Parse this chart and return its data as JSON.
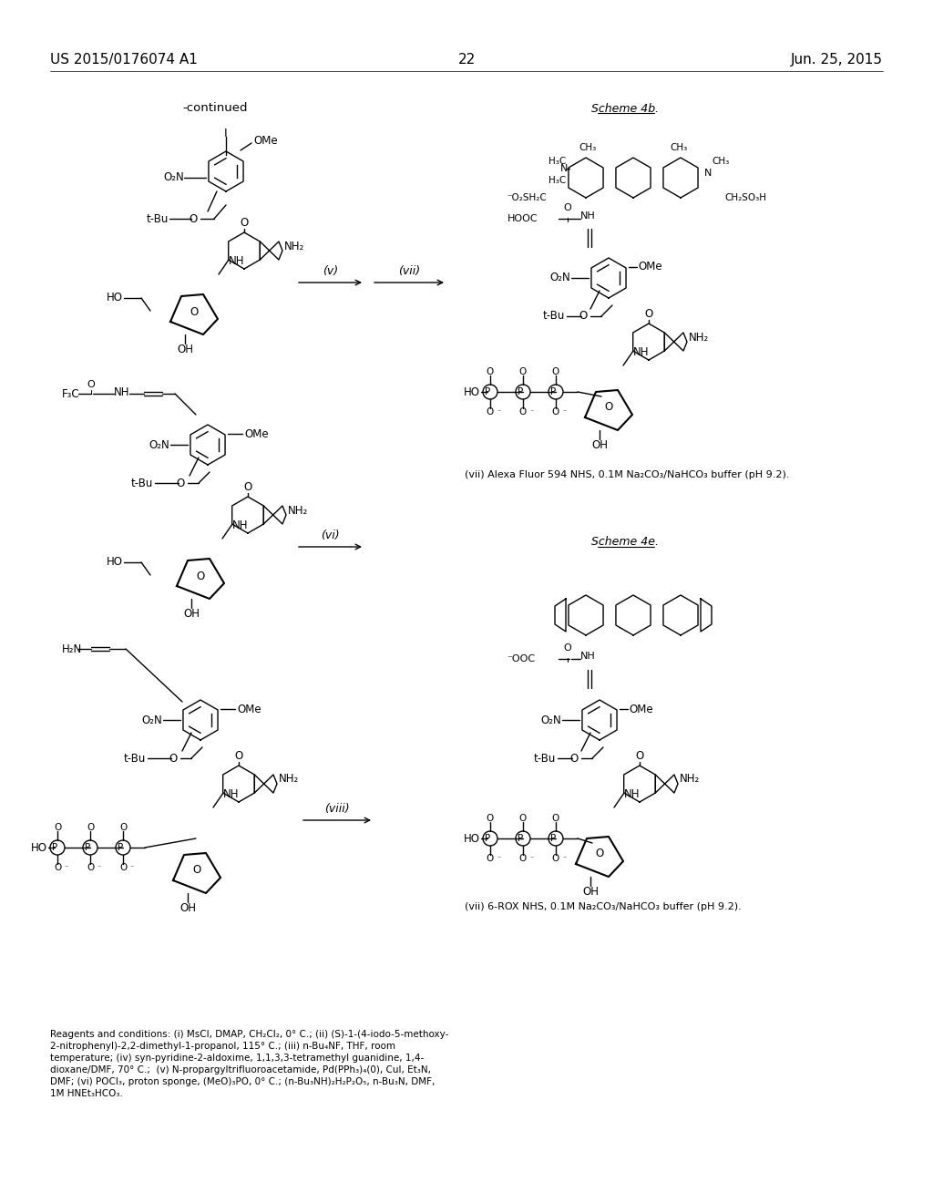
{
  "background_color": "#ffffff",
  "header_left": "US 2015/0176074 A1",
  "header_right": "Jun. 25, 2015",
  "page_number": "22",
  "continued_label": "-continued",
  "scheme_4b_label": "Scheme 4b.",
  "scheme_4e_label": "Scheme 4e.",
  "footnote_left_line1": "Reagents and conditions: (i) MsCl, DMAP, CH₂Cl₂, 0° C.; (ii) (S)-1-(4-iodo-5-methoxy-",
  "footnote_left_line2": "2-nitrophenyl)-2,2-dimethyl-1-propanol, 115° C.; (iii) n-Bu₄NF, THF, room",
  "footnote_left_line3": "temperature; (iv) syn-pyridine-2-aldoxime, 1,1,3,3-tetramethyl guanidine, 1,4-",
  "footnote_left_line4": "dioxane/DMF, 70° C.;  (v) N-propargyltrifluoroacetamide, Pd(PPh₃)₄(0), CuI, Et₃N,",
  "footnote_left_line5": "DMF; (vi) POCl₃, proton sponge, (MeO)₃PO, 0° C.; (n-Bu₃NH)₂H₂P₂O₅, n-Bu₃N, DMF,",
  "footnote_left_line6": "1M HNEt₃HCO₃.",
  "footnote_right_vii": "(vii) Alexa Fluor 594 NHS, 0.1M Na₂CO₃/NaHCO₃ buffer (pH 9.2).",
  "footnote_right_viii": "(vii) 6-ROX NHS, 0.1M Na₂CO₃/NaHCO₃ buffer (pH 9.2)."
}
